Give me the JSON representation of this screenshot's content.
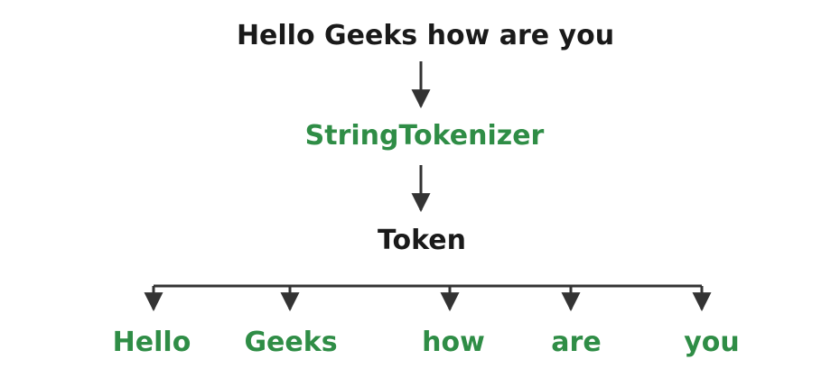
{
  "diagram": {
    "input_text": "Hello Geeks how are you",
    "process_label": "StringTokenizer",
    "output_label": "Token",
    "tokens": [
      "Hello",
      "Geeks",
      "how",
      "are",
      "you"
    ]
  },
  "colors": {
    "text_dark": "#1a1a1a",
    "accent_green": "#2f8d46",
    "arrow": "#333333"
  }
}
